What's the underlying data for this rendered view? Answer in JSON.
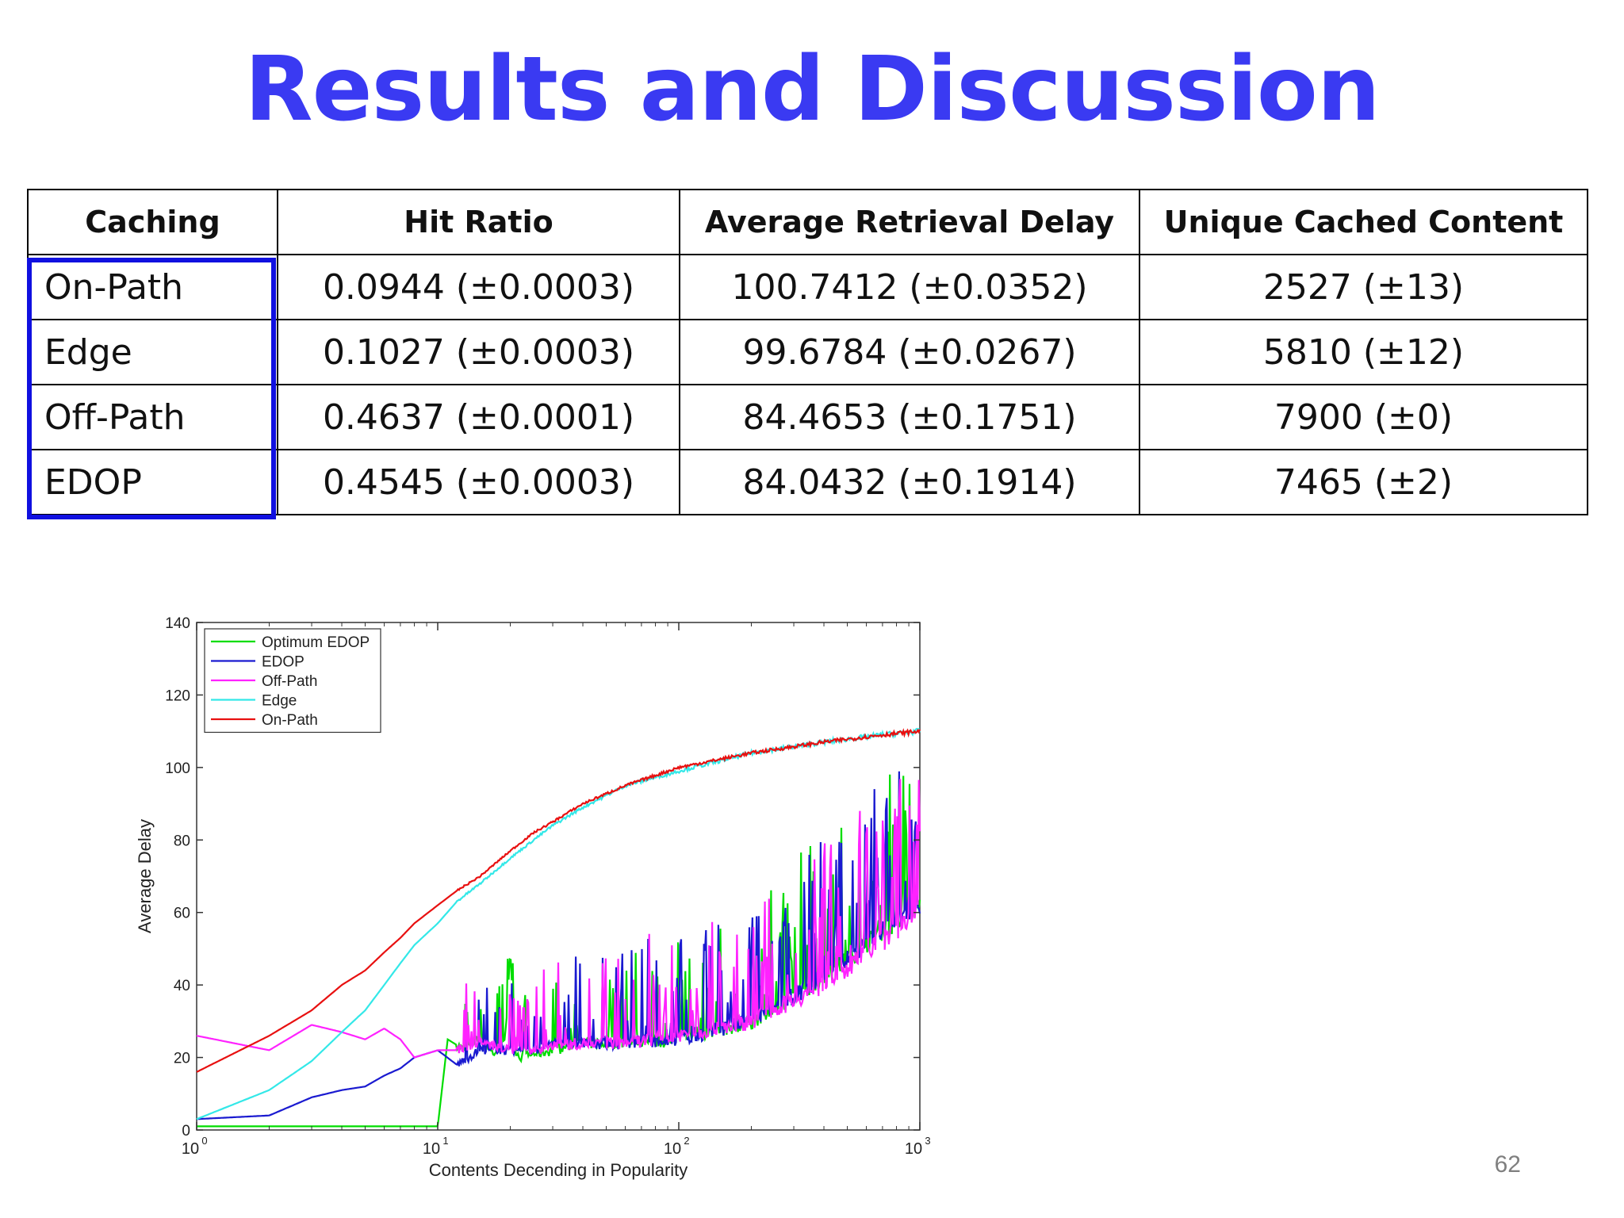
{
  "slide": {
    "title": "Results and Discussion",
    "page_number": "62"
  },
  "table": {
    "headers": [
      "Caching",
      "Hit Ratio",
      "Average Retrieval Delay",
      "Unique Cached Content"
    ],
    "rows": [
      [
        "On-Path",
        "0.0944 (±0.0003)",
        "100.7412 (±0.0352)",
        "2527 (±13)"
      ],
      [
        "Edge",
        "0.1027 (±0.0003)",
        "99.6784 (±0.0267)",
        "5810 (±12)"
      ],
      [
        "Off-Path",
        "0.4637 (±0.0001)",
        "84.4653 (±0.1751)",
        "7900 (±0)"
      ],
      [
        "EDOP",
        "0.4545 (±0.0003)",
        "84.0432 (±0.1914)",
        "7465 (±2)"
      ]
    ]
  },
  "chart_data": {
    "type": "line",
    "xlabel": "Contents Decending in Popularity",
    "ylabel": "Average Delay",
    "xscale": "log",
    "xlim": [
      1,
      1000
    ],
    "ylim": [
      0,
      140
    ],
    "xticks": [
      {
        "base": "10",
        "exp": "0",
        "value": 1
      },
      {
        "base": "10",
        "exp": "1",
        "value": 10
      },
      {
        "base": "10",
        "exp": "2",
        "value": 100
      },
      {
        "base": "10",
        "exp": "3",
        "value": 1000
      }
    ],
    "yticks": [
      "0",
      "20",
      "40",
      "60",
      "80",
      "100",
      "120",
      "140"
    ],
    "legend": "top-left",
    "series": [
      {
        "name": "Optimum EDOP",
        "color": "#00dd00",
        "x": [
          1,
          2,
          5,
          10,
          11,
          13,
          15,
          17,
          19,
          20,
          21,
          22,
          25,
          30,
          40,
          60,
          100,
          200,
          400,
          700,
          1000
        ],
        "y": [
          1,
          1,
          1,
          1,
          25,
          22,
          26,
          21,
          24,
          50,
          22,
          20,
          21,
          22,
          24,
          24,
          25,
          30,
          42,
          55,
          62
        ]
      },
      {
        "name": "EDOP",
        "color": "#1a1ad0",
        "x": [
          1,
          2,
          3,
          4,
          5,
          6,
          7,
          8,
          10,
          12,
          15,
          20,
          25,
          30,
          40,
          60,
          100,
          200,
          400,
          700,
          1000
        ],
        "y": [
          3,
          4,
          9,
          11,
          12,
          15,
          17,
          20,
          22,
          18,
          22,
          22,
          22,
          24,
          24,
          24,
          25,
          30,
          42,
          55,
          62
        ]
      },
      {
        "name": "Off-Path",
        "color": "#ff22ff",
        "x": [
          1,
          2,
          3,
          4,
          5,
          6,
          7,
          8,
          10,
          12,
          15,
          20,
          25,
          30,
          40,
          60,
          100,
          200,
          400,
          700,
          1000
        ],
        "y": [
          26,
          22,
          29,
          27,
          25,
          28,
          25,
          20,
          22,
          22,
          24,
          22,
          22,
          23,
          24,
          24,
          26,
          30,
          40,
          52,
          60
        ]
      },
      {
        "name": "Edge",
        "color": "#33e8e8",
        "x": [
          1,
          2,
          3,
          4,
          5,
          6,
          7,
          8,
          10,
          12,
          15,
          20,
          25,
          30,
          40,
          60,
          100,
          200,
          400,
          700,
          1000
        ],
        "y": [
          3,
          11,
          19,
          27,
          33,
          40,
          46,
          51,
          57,
          63,
          68,
          75,
          80,
          84,
          89,
          95,
          99,
          104,
          107,
          109,
          110
        ]
      },
      {
        "name": "On-Path",
        "color": "#e81010",
        "x": [
          1,
          2,
          3,
          4,
          5,
          6,
          7,
          8,
          10,
          12,
          15,
          20,
          25,
          30,
          40,
          60,
          100,
          200,
          400,
          700,
          1000
        ],
        "y": [
          16,
          26,
          33,
          40,
          44,
          49,
          53,
          57,
          62,
          66,
          70,
          77,
          82,
          85,
          90,
          95,
          100,
          104,
          107,
          109,
          110
        ]
      }
    ]
  }
}
